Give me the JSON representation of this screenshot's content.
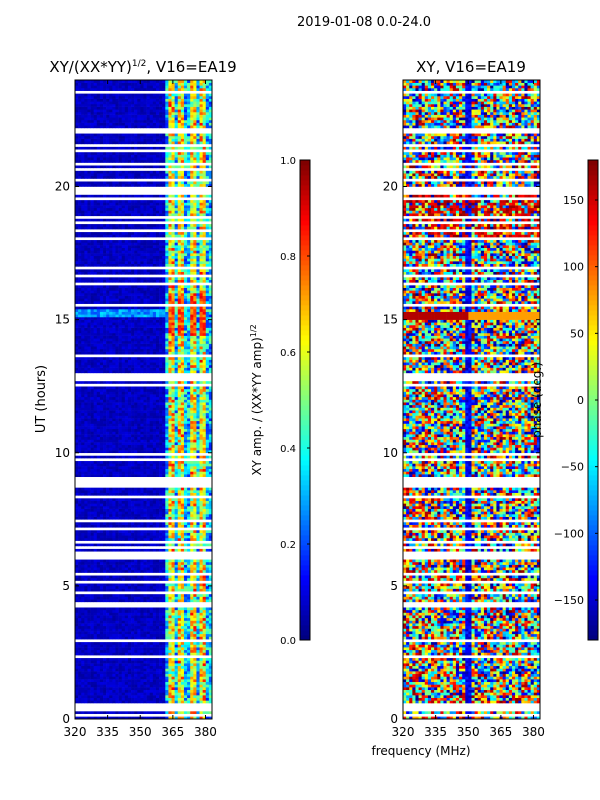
{
  "figure": {
    "suptitle": "2019-01-08 0.0-24.0",
    "shared_xlabel": "frequency (MHz)"
  },
  "chart_data": [
    {
      "type": "heatmap",
      "title_main": "XY/(XX*YY)",
      "title_sup": "1/2",
      "title_tail": ", V16=EA19",
      "ylabel": "UT (hours)",
      "x_ticks": [
        "320",
        "335",
        "350",
        "365",
        "380"
      ],
      "x_tick_values": [
        320,
        335,
        350,
        365,
        380
      ],
      "xlim": [
        320,
        383
      ],
      "y_ticks": [
        "0",
        "5",
        "10",
        "15",
        "20"
      ],
      "y_tick_values": [
        0,
        5,
        10,
        15,
        20
      ],
      "ylim": [
        0,
        24
      ],
      "quantity": "normalized XY amplitude",
      "colorbar": {
        "label_main": "XY amp. / (XX*YY amp)",
        "label_sup": "1/2",
        "ticks": [
          "0.0",
          "0.2",
          "0.4",
          "0.6",
          "0.8",
          "1.0"
        ],
        "tick_values": [
          0.0,
          0.2,
          0.4,
          0.6,
          0.8,
          1.0
        ],
        "range": [
          0,
          1
        ],
        "colormap": "jet"
      }
    },
    {
      "type": "heatmap",
      "title": "XY, V16=EA19",
      "x_ticks": [
        "320",
        "335",
        "350",
        "365",
        "380"
      ],
      "x_tick_values": [
        320,
        335,
        350,
        365,
        380
      ],
      "xlim": [
        320,
        383
      ],
      "y_ticks": [
        "0",
        "5",
        "10",
        "15",
        "20"
      ],
      "y_tick_values": [
        0,
        5,
        10,
        15,
        20
      ],
      "ylim": [
        0,
        24
      ],
      "quantity": "XY phase",
      "colorbar": {
        "label": "phase (deg.)",
        "ticks": [
          "−150",
          "−100",
          "−50",
          "0",
          "50",
          "100",
          "150"
        ],
        "tick_values": [
          -150,
          -100,
          -50,
          0,
          50,
          100,
          150
        ],
        "range": [
          -180,
          180
        ],
        "colormap": "jet"
      }
    }
  ],
  "colors": {
    "low": "#00007f",
    "high": "#7f0000",
    "gap": "#ffffff",
    "axis": "#000000"
  }
}
